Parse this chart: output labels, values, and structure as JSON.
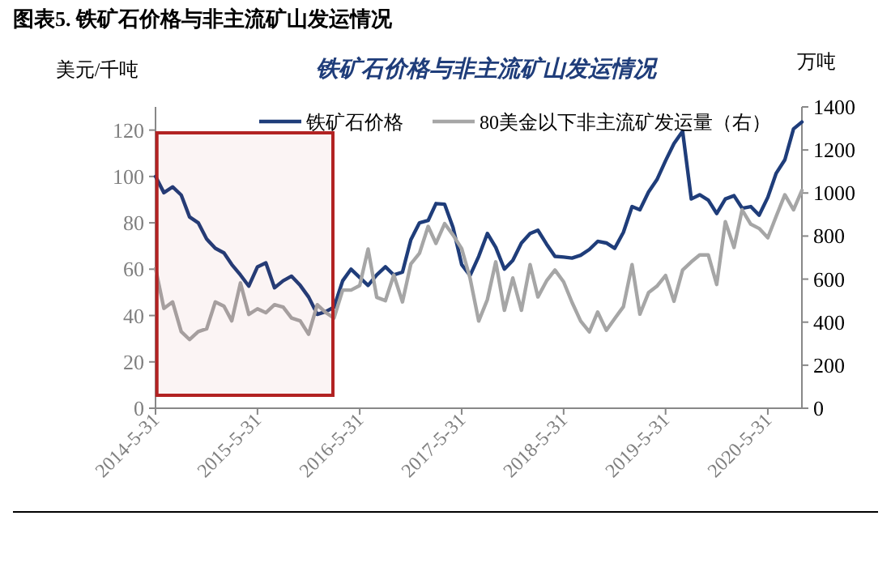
{
  "chart_data": {
    "type": "line",
    "title": "图表5.    铁矿石价格与非主流矿山发运情况",
    "subtitle": "铁矿石价格与非主流矿山发运情况",
    "ylabel": "美元/千吨",
    "y2label": "万吨",
    "x": [
      "2014-05-31",
      "2014-06-30",
      "2014-07-31",
      "2014-08-31",
      "2014-09-30",
      "2014-10-31",
      "2014-11-30",
      "2014-12-31",
      "2015-01-31",
      "2015-02-28",
      "2015-03-31",
      "2015-04-30",
      "2015-05-31",
      "2015-06-30",
      "2015-07-31",
      "2015-08-31",
      "2015-09-30",
      "2015-10-31",
      "2015-11-30",
      "2015-12-31",
      "2016-01-31",
      "2016-02-29",
      "2016-03-31",
      "2016-04-30",
      "2016-05-31",
      "2016-06-30",
      "2016-07-31",
      "2016-08-31",
      "2016-09-30",
      "2016-10-31",
      "2016-11-30",
      "2016-12-31",
      "2017-01-31",
      "2017-02-28",
      "2017-03-31",
      "2017-04-30",
      "2017-05-31",
      "2017-06-30",
      "2017-07-31",
      "2017-08-31",
      "2017-09-30",
      "2017-10-31",
      "2017-11-30",
      "2017-12-31",
      "2018-01-31",
      "2018-02-28",
      "2018-03-31",
      "2018-04-30",
      "2018-05-31",
      "2018-06-30",
      "2018-07-31",
      "2018-08-31",
      "2018-09-30",
      "2018-10-31",
      "2018-11-30",
      "2018-12-31",
      "2019-01-31",
      "2019-02-28",
      "2019-03-31",
      "2019-04-30",
      "2019-05-31",
      "2019-06-30",
      "2019-07-31",
      "2019-08-31",
      "2019-09-30",
      "2019-10-31",
      "2019-11-30",
      "2019-12-31",
      "2020-01-31",
      "2020-02-29",
      "2020-03-31",
      "2020-04-30",
      "2020-05-31",
      "2020-06-30",
      "2020-07-31",
      "2020-08-31",
      "2020-09-30"
    ],
    "series": [
      {
        "name": "铁矿石价格",
        "color": "#1f3d7a",
        "values": [
          100,
          93,
          95.5,
          92,
          82.5,
          80,
          73,
          69,
          67,
          62,
          57.5,
          52.7,
          61,
          62.7,
          52,
          55,
          57,
          53,
          48,
          40.5,
          41.7,
          43.6,
          55,
          60,
          56.4,
          53,
          57.5,
          61,
          57.5,
          58.7,
          72.7,
          80,
          81,
          88.3,
          88,
          78,
          62,
          57.3,
          65.5,
          75.4,
          69.4,
          60,
          63.8,
          71.3,
          75.4,
          76.8,
          70.8,
          65.5,
          65.2,
          64.8,
          66,
          68.5,
          72,
          71.3,
          69,
          75.9,
          87,
          85.6,
          93.3,
          98.6,
          106.8,
          114.2,
          119.5,
          90.3,
          92.1,
          89.8,
          84,
          90.3,
          91.7,
          86.3,
          87,
          83.3,
          91,
          101.4,
          107.2,
          120.5,
          123.5
        ]
      },
      {
        "name": "80美金以下非主流矿发运量（右）",
        "color": "#a6a6a6",
        "axis": "y2",
        "values": [
          650,
          464,
          494,
          356,
          319,
          356,
          369,
          494,
          474,
          406,
          582,
          436,
          462,
          444,
          481,
          470,
          419,
          406,
          344,
          481,
          444,
          419,
          549,
          549,
          570,
          740,
          515,
          500,
          619,
          494,
          670,
          720,
          845,
          766,
          858,
          805,
          742,
          605,
          405,
          505,
          680,
          455,
          605,
          455,
          667,
          517,
          592,
          642,
          587,
          492,
          405,
          355,
          447,
          362,
          417,
          472,
          667,
          437,
          537,
          567,
          617,
          497,
          642,
          680,
          712,
          712,
          575,
          867,
          747,
          922,
          855,
          835,
          792,
          892,
          992,
          922,
          1012
        ]
      }
    ],
    "xlim": [
      "2014-05-31",
      "2020-09-30"
    ],
    "xticks": [
      {
        "value": "2014-05-31",
        "label": "2014-5-31"
      },
      {
        "value": "2015-05-31",
        "label": "2015-5-31"
      },
      {
        "value": "2016-05-31",
        "label": "2016-5-31"
      },
      {
        "value": "2017-05-31",
        "label": "2017-5-31"
      },
      {
        "value": "2018-05-31",
        "label": "2018-5-31"
      },
      {
        "value": "2019-05-31",
        "label": "2019-5-31"
      },
      {
        "value": "2020-05-31",
        "label": "2020-5-31"
      }
    ],
    "ylim": [
      0,
      130
    ],
    "yticks": [
      0,
      20,
      40,
      60,
      80,
      100,
      120
    ],
    "y2lim": [
      0,
      1400
    ],
    "y2ticks": [
      0,
      200,
      400,
      600,
      800,
      1000,
      1200,
      1400
    ],
    "bands": [
      {
        "axis": "x",
        "from": "2014-06-05",
        "to": "2016-02-25",
        "color": "#b22222"
      }
    ],
    "legend": "top",
    "grid": false,
    "marker": "none",
    "line_style": "solid"
  }
}
